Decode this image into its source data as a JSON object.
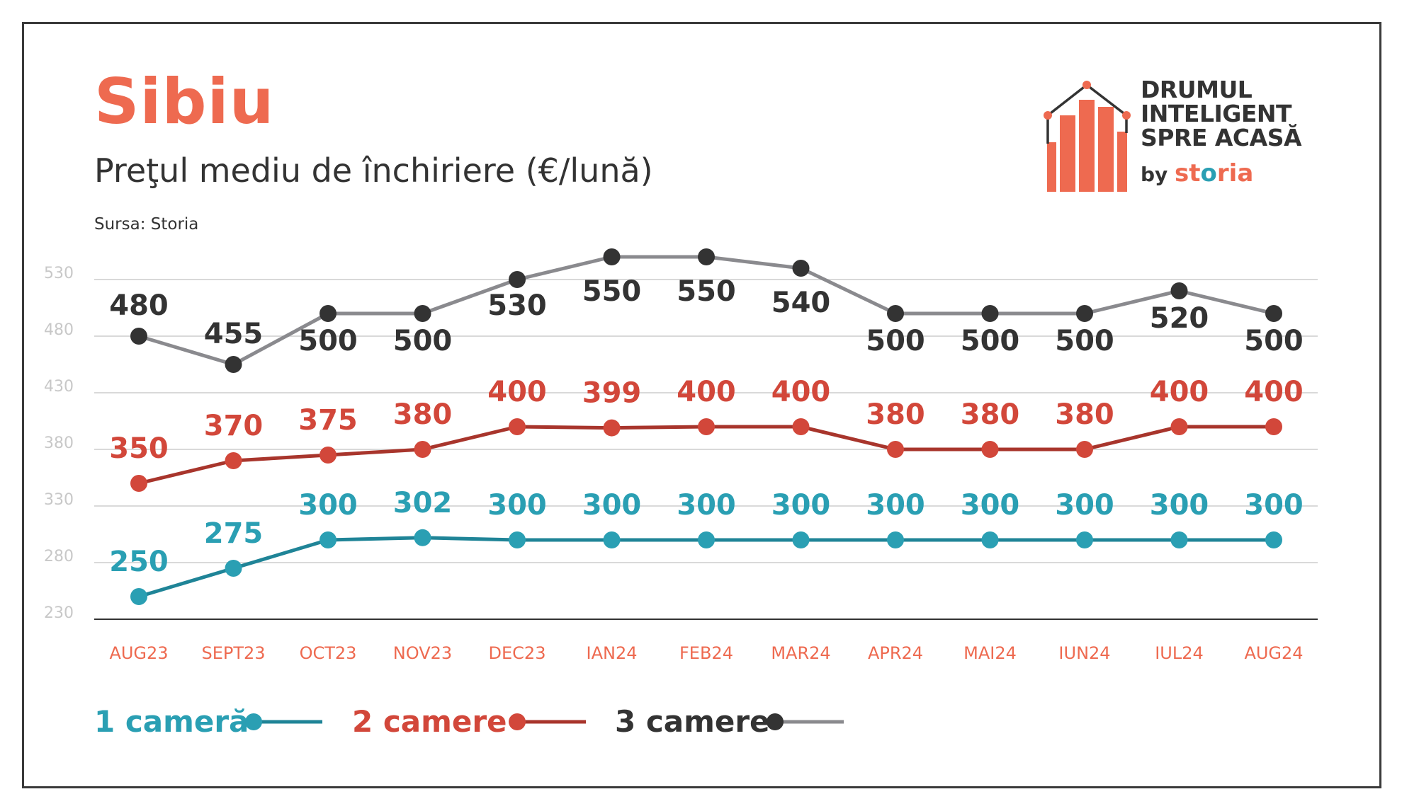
{
  "title": "Sibiu",
  "subtitle": "Preţul mediu de închiriere (€/lună)",
  "source": "Sursa: Storia",
  "logo": {
    "lines": [
      "DRUMUL",
      "INTELIGENT",
      "SPRE ACASĂ"
    ],
    "by": "by",
    "brand_pre": "st",
    "brand_o": "o",
    "brand_post": "ria"
  },
  "colors": {
    "title": "#ee6a50",
    "axis_labels": "#ee6a50",
    "grid": "#d9d9d9",
    "axis": "#333333",
    "series_1": "#2a9fb3",
    "series_1_line": "#1f8497",
    "series_2": "#d2473a",
    "series_2_line": "#a8352c",
    "series_3": "#333333",
    "series_3_line": "#8a8a8e"
  },
  "chart_data": {
    "type": "line",
    "categories": [
      "AUG23",
      "SEPT23",
      "OCT23",
      "NOV23",
      "DEC23",
      "IAN24",
      "FEB24",
      "MAR24",
      "APR24",
      "MAI24",
      "IUN24",
      "IUL24",
      "AUG24"
    ],
    "yticks": [
      230,
      280,
      330,
      380,
      430,
      480,
      530
    ],
    "ylim": [
      230,
      580
    ],
    "grid": true,
    "legend_position": "bottom-left",
    "series": [
      {
        "name": "1 cameră",
        "values": [
          250,
          275,
          300,
          302,
          300,
          300,
          300,
          300,
          300,
          300,
          300,
          300,
          300
        ]
      },
      {
        "name": "2 camere",
        "values": [
          350,
          370,
          375,
          380,
          400,
          399,
          400,
          400,
          380,
          380,
          380,
          400,
          400
        ]
      },
      {
        "name": "3 camere",
        "values": [
          480,
          455,
          500,
          500,
          530,
          550,
          550,
          540,
          500,
          500,
          500,
          520,
          500
        ]
      }
    ]
  }
}
